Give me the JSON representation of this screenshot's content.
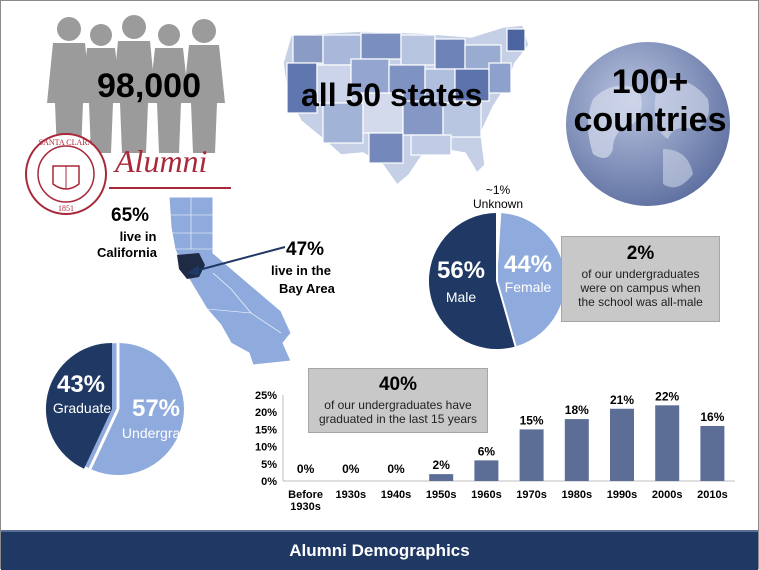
{
  "stats": {
    "alumni_count": "98,000",
    "states": "all 50 states",
    "countries_line1": "100+",
    "countries_line2": "countries",
    "alumni_script": "Alumni",
    "seal_text": "SANTA CLARA",
    "seal_year": "1851"
  },
  "california": {
    "pct": "65%",
    "label_line1": "live in",
    "label_line2": "California",
    "bay_pct": "47%",
    "bay_line1": "live in the",
    "bay_line2": "Bay Area"
  },
  "gender": {
    "male_pct": "56%",
    "male_label": "Male",
    "female_pct": "44%",
    "female_label": "Female",
    "unknown_pct": "~1%",
    "unknown_label": "Unknown",
    "note_pct": "2%",
    "note_line1": "of our undergraduates",
    "note_line2": "were on campus when",
    "note_line3": "the school was all-male"
  },
  "degree": {
    "grad_pct": "43%",
    "grad_label": "Graduate",
    "undergrad_pct": "57%",
    "undergrad_label": "Undergrad"
  },
  "bar_note": {
    "pct": "40%",
    "line1": "of our undergraduates have",
    "line2": "graduated in the last 15 years"
  },
  "footer_title": "Alumni Demographics",
  "colors": {
    "navy": "#1f3864",
    "light_blue": "#8faadc",
    "bar": "#5d6e96",
    "gray_box": "#c8c8c8",
    "seal_red": "#a8293a"
  },
  "chart_data": [
    {
      "type": "bar",
      "categories": [
        "Before 1930s",
        "1930s",
        "1940s",
        "1950s",
        "1960s",
        "1970s",
        "1980s",
        "1990s",
        "2000s",
        "2010s"
      ],
      "values": [
        0,
        0,
        0,
        2,
        6,
        15,
        18,
        21,
        22,
        16
      ],
      "data_labels": [
        "0%",
        "0%",
        "0%",
        "2%",
        "6%",
        "15%",
        "18%",
        "21%",
        "22%",
        "16%"
      ],
      "y_ticks": [
        "0%",
        "5%",
        "10%",
        "15%",
        "20%",
        "25%"
      ],
      "ylim": [
        0,
        25
      ],
      "grid": false
    },
    {
      "type": "pie",
      "labels": [
        "Male",
        "Female",
        "Unknown"
      ],
      "values": [
        56,
        44,
        1
      ]
    },
    {
      "type": "pie",
      "labels": [
        "Graduate",
        "Undergrad"
      ],
      "values": [
        43,
        57
      ]
    }
  ]
}
